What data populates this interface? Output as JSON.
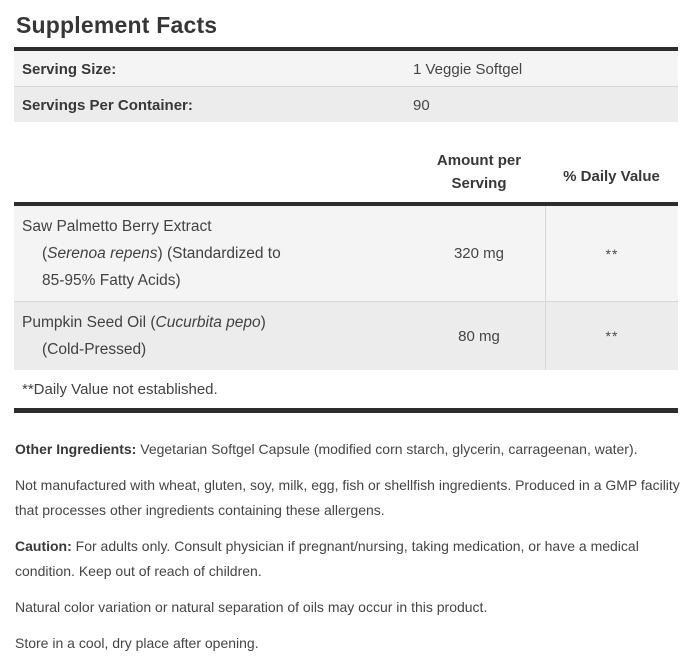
{
  "title": "Supplement Facts",
  "serving_info": {
    "rows": [
      {
        "label": "Serving Size:",
        "value": "1 Veggie Softgel"
      },
      {
        "label": "Servings Per Container:",
        "value": "90"
      }
    ]
  },
  "nutrient_table": {
    "amount_header": "Amount per Serving",
    "dv_header": "% Daily Value",
    "rows": [
      {
        "name_lines": [
          [
            {
              "t": "Saw Palmetto Berry Extract"
            }
          ],
          [
            {
              "t": "("
            },
            {
              "t": "Serenoa repens",
              "i": true
            },
            {
              "t": ") (Standardized to"
            }
          ],
          [
            {
              "t": "85-95% Fatty Acids)"
            }
          ]
        ],
        "amount": "320 mg",
        "daily_value": "**"
      },
      {
        "name_lines": [
          [
            {
              "t": "Pumpkin Seed Oil ("
            },
            {
              "t": "Cucurbita pepo",
              "i": true
            },
            {
              "t": ")"
            }
          ],
          [
            {
              "t": "(Cold-Pressed)"
            }
          ]
        ],
        "amount": "80 mg",
        "daily_value": "**"
      }
    ],
    "footnote": "**Daily Value not established."
  },
  "notes": [
    {
      "bold": "Other Ingredients:",
      "text": " Vegetarian Softgel Capsule (modified corn starch, glycerin, carrageenan, water)."
    },
    {
      "bold": "",
      "text": "Not manufactured with wheat, gluten, soy, milk, egg, fish or shellfish ingredients. Produced in a GMP facility that processes other ingredients containing these allergens."
    },
    {
      "bold": "Caution:",
      "text": " For adults only. Consult physician if pregnant/nursing, taking medication, or have a medical condition. Keep out of reach of children."
    },
    {
      "bold": "",
      "text": "Natural color variation or natural separation of oils may occur in this product."
    },
    {
      "bold": "",
      "text": "Store in a cool, dry place after opening."
    }
  ],
  "colors": {
    "rule": "#2d2d2d",
    "divider": "#d8d8d8",
    "stripe_light": "#f4f4f4",
    "stripe_dark": "#ececec",
    "text": "#414141",
    "bold_text": "#383838"
  }
}
